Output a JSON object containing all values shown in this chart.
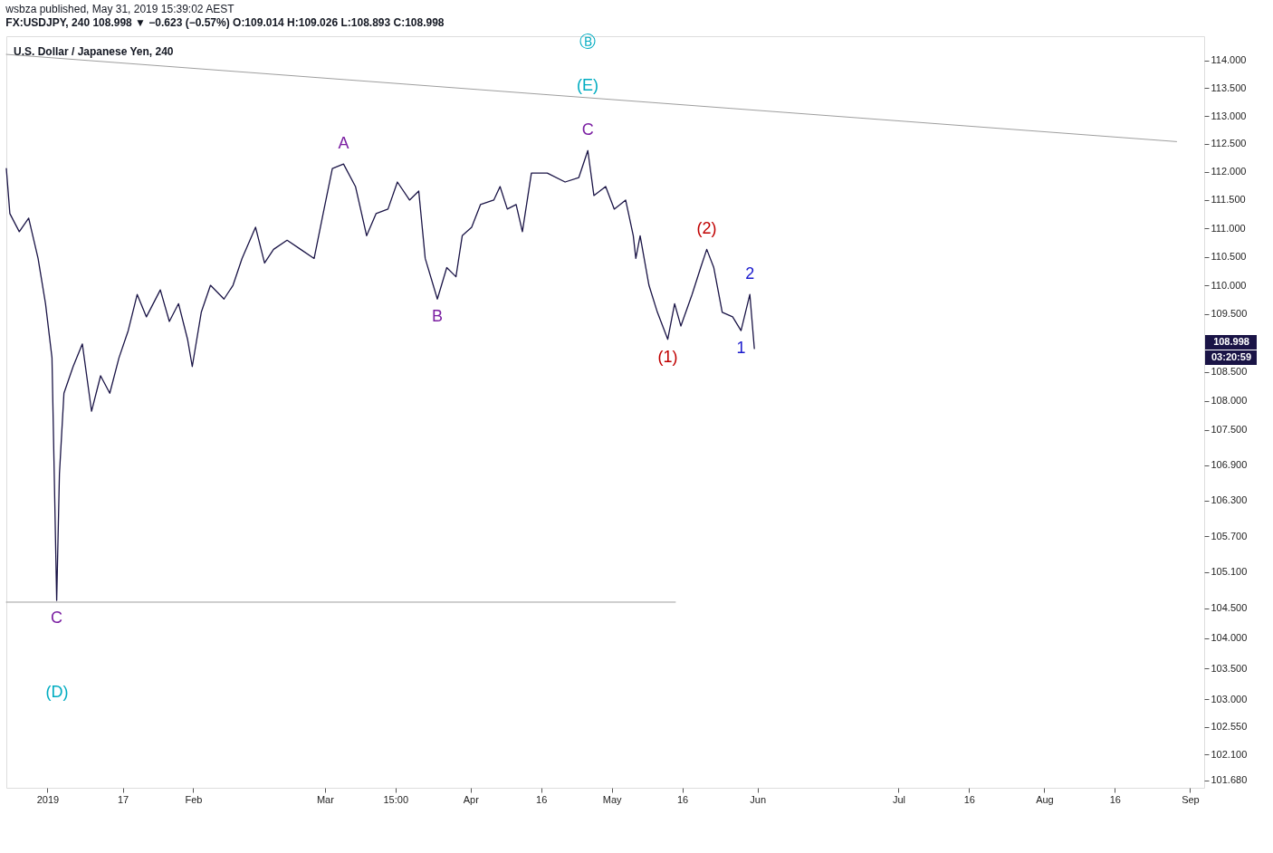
{
  "chart_data": {
    "type": "line",
    "title": "wsbza published, May 31, 2019 15:39:02 AEST",
    "subtitle": "FX:USDJPY, 240 108.998 ▼ −0.623 (−0.57%) O:109.014 H:109.026 L:108.893 C:108.998",
    "log": "y",
    "marker": "none",
    "line_style": "solid",
    "xlim": [
      "2018-12-23T06:00",
      "2019-09-04"
    ],
    "xticks": [
      {
        "value": "2019-01-01",
        "label": "2019"
      },
      {
        "value": "2019-01-17",
        "label": "17"
      },
      {
        "value": "2019-02-01",
        "label": "Feb"
      },
      {
        "value": "2019-03-01",
        "label": "Mar"
      },
      {
        "value": "2019-03-16",
        "label": "15:00"
      },
      {
        "value": "2019-04-01",
        "label": "Apr"
      },
      {
        "value": "2019-04-16",
        "label": "16"
      },
      {
        "value": "2019-05-01",
        "label": "May"
      },
      {
        "value": "2019-05-16",
        "label": "16"
      },
      {
        "value": "2019-06-01",
        "label": "Jun"
      },
      {
        "value": "2019-07-01",
        "label": "Jul"
      },
      {
        "value": "2019-07-16",
        "label": "16"
      },
      {
        "value": "2019-08-01",
        "label": "Aug"
      },
      {
        "value": "2019-08-16",
        "label": "16"
      },
      {
        "value": "2019-09-01",
        "label": "Sep"
      }
    ],
    "ylim": [
      101.56,
      114.44
    ],
    "yticks": [
      {
        "value": 101.68,
        "label": "101.680"
      },
      {
        "value": 102.1,
        "label": "102.100"
      },
      {
        "value": 102.55,
        "label": "102.550"
      },
      {
        "value": 103,
        "label": "103.000"
      },
      {
        "value": 103.5,
        "label": "103.500"
      },
      {
        "value": 104,
        "label": "104.000"
      },
      {
        "value": 104.5,
        "label": "104.500"
      },
      {
        "value": 105.1,
        "label": "105.100"
      },
      {
        "value": 105.7,
        "label": "105.700"
      },
      {
        "value": 106.3,
        "label": "106.300"
      },
      {
        "value": 106.9,
        "label": "106.900"
      },
      {
        "value": 107.5,
        "label": "107.500"
      },
      {
        "value": 108,
        "label": "108.000"
      },
      {
        "value": 108.5,
        "label": "108.500"
      },
      {
        "value": 109.5,
        "label": "109.500"
      },
      {
        "value": 110,
        "label": "110.000"
      },
      {
        "value": 110.5,
        "label": "110.500"
      },
      {
        "value": 111,
        "label": "111.000"
      },
      {
        "value": 111.5,
        "label": "111.500"
      },
      {
        "value": 112,
        "label": "112.000"
      },
      {
        "value": 112.5,
        "label": "112.500"
      },
      {
        "value": 113,
        "label": "113.000"
      },
      {
        "value": 113.5,
        "label": "113.500"
      },
      {
        "value": 114,
        "label": "114.000"
      }
    ],
    "series": [
      {
        "color": "#1a1446",
        "x": [
          "2018-12-23T06:00",
          "2018-12-24",
          "2018-12-26",
          "2018-12-28",
          "2018-12-30",
          "2018-12-31T14:00",
          "2019-01-01T23:00",
          "2019-01-02T23:00",
          "2019-01-03T13:00",
          "2019-01-04T12:00",
          "2019-01-06T11:00",
          "2019-01-08T10:00",
          "2019-01-10T09:00",
          "2019-01-12T07:00",
          "2019-01-14T06:00",
          "2019-01-16T05:00",
          "2019-01-18T04:00",
          "2019-01-20T02:00",
          "2019-01-22T01:00",
          "2019-01-25",
          "2019-01-26T22:00",
          "2019-01-28T21:00",
          "2019-01-30T19:00",
          "2019-01-31T19:00",
          "2019-02-02T17:00",
          "2019-02-04T16:00",
          "2019-02-07T13:00",
          "2019-02-09T11:00",
          "2019-02-11T09:00",
          "2019-02-14T06:00",
          "2019-02-16T04:00",
          "2019-02-18T02:00",
          "2019-02-20T23:00",
          "2019-02-23T20:00",
          "2019-02-26T17:00",
          "2019-02-28T15:00",
          "2019-03-02T14:00",
          "2019-03-04T23:00",
          "2019-03-07T12:00",
          "2019-03-09T21:00",
          "2019-03-11T21:00",
          "2019-03-14T10:00",
          "2019-03-16T10:00",
          "2019-03-19",
          "2019-03-20T23:00",
          "2019-03-22T08:00",
          "2019-03-24T22:00",
          "2019-03-26T22:00",
          "2019-03-28T21:00",
          "2019-03-30T05:00",
          "2019-04-01T05:00",
          "2019-04-03T02:00",
          "2019-04-05T22:00",
          "2019-04-07T06:00",
          "2019-04-08T19:00",
          "2019-04-10T16:00",
          "2019-04-12",
          "2019-04-13T22:00",
          "2019-04-17T07:00",
          "2019-04-21T02:00",
          "2019-04-24",
          "2019-04-25T22:00",
          "2019-04-27T05:00",
          "2019-04-29T17:00",
          "2019-05-01T13:00",
          "2019-05-03T23:00",
          "2019-05-05T14:00",
          "2019-05-06T03:00",
          "2019-05-07T01:00",
          "2019-05-08T22:00",
          "2019-05-10T17:00",
          "2019-05-12T22:00",
          "2019-05-14T09:00",
          "2019-05-15T17:00",
          "2019-05-18T02:00",
          "2019-05-19T22:00",
          "2019-05-21T05:00",
          "2019-05-22T17:00",
          "2019-05-24T12:00",
          "2019-05-26T17:00",
          "2019-05-28T12:00",
          "2019-05-30T09:00",
          "2019-05-31T08:00"
        ],
        "values": [
          112.06,
          111.26,
          110.94,
          111.18,
          110.47,
          109.68,
          108.74,
          104.63,
          106.75,
          108.13,
          108.59,
          108.98,
          107.82,
          108.43,
          108.13,
          108.74,
          109.21,
          109.84,
          109.45,
          109.92,
          109.37,
          109.68,
          109.06,
          108.59,
          109.53,
          110.0,
          109.76,
          110.0,
          110.47,
          111.02,
          110.39,
          110.63,
          110.79,
          110.63,
          110.47,
          111.26,
          112.06,
          112.14,
          111.74,
          110.87,
          111.26,
          111.34,
          111.82,
          111.5,
          111.66,
          110.47,
          109.76,
          110.31,
          110.15,
          110.87,
          111.02,
          111.42,
          111.5,
          111.74,
          111.34,
          111.42,
          110.94,
          111.98,
          111.98,
          111.82,
          111.9,
          112.38,
          111.58,
          111.74,
          111.34,
          111.5,
          110.87,
          110.47,
          110.87,
          110.0,
          109.53,
          109.06,
          109.68,
          109.29,
          109.84,
          110.31,
          110.63,
          110.31,
          109.53,
          109.45,
          109.21,
          109.84,
          108.9
        ]
      },
      {
        "color": "#9e9e9e",
        "x": [
          "2018-12-23T06:00",
          "2019-08-29T03:00"
        ],
        "values": [
          114.11,
          112.54
        ]
      },
      {
        "color": "#9e9e9e",
        "x": [
          "2018-12-23T06:00",
          "2019-05-14T13:00"
        ],
        "values": [
          104.6,
          104.6
        ]
      }
    ],
    "annotations": [
      "U.S. Dollar / Japanese Yen, 240",
      "108.998",
      "03:20:59",
      "Ⓑ",
      "(E)",
      "(D)",
      {
        "text": "C",
        "x": "2019-04-25T22:00",
        "y": 112.38
      },
      {
        "text": "A",
        "x": "2019-03-04T23:00",
        "y": 112.14
      },
      {
        "text": "B",
        "x": "2019-03-24T22:00",
        "y": 109.76
      },
      {
        "text": "(2)",
        "x": "2019-05-21T05:00",
        "y": 110.63
      },
      {
        "text": "2",
        "x": "2019-05-30T09:00",
        "y": 109.84
      },
      {
        "text": "(1)",
        "x": "2019-05-12T22:00",
        "y": 109.06
      },
      {
        "text": "1",
        "x": "2019-05-28T12:00",
        "y": 109.21
      },
      {
        "text": "C",
        "x": "2019-01-02T23:00",
        "y": 104.63
      }
    ]
  }
}
